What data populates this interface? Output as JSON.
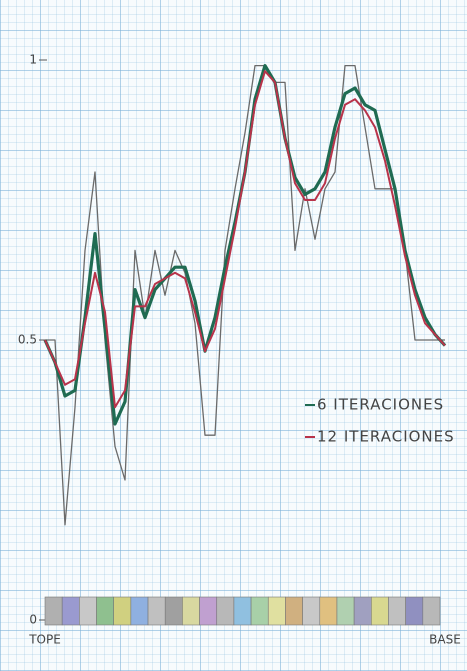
{
  "chart_data": {
    "type": "line",
    "categories": [
      "TOPE",
      null,
      null,
      null,
      null,
      null,
      null,
      null,
      null,
      null,
      null,
      null,
      null,
      null,
      null,
      null,
      null,
      null,
      null,
      null,
      null,
      null,
      null,
      null,
      null,
      null,
      null,
      null,
      null,
      null,
      null,
      null,
      null,
      null,
      null,
      null,
      null,
      null,
      null,
      null,
      "BASE"
    ],
    "ylim": [
      0,
      1
    ],
    "yticks": [
      0,
      0.5,
      1
    ],
    "grid": true,
    "legend": "right",
    "series": [
      {
        "color": "#6a6a6a",
        "values": [
          0.5,
          0.5,
          0.17,
          0.38,
          0.66,
          0.8,
          0.5,
          0.31,
          0.25,
          0.66,
          0.54,
          0.66,
          0.58,
          0.66,
          0.62,
          0.53,
          0.33,
          0.33,
          0.66,
          0.77,
          0.87,
          0.99,
          0.99,
          0.96,
          0.96,
          0.66,
          0.77,
          0.68,
          0.77,
          0.8,
          0.99,
          0.99,
          0.88,
          0.77,
          0.77,
          0.77,
          0.66,
          0.5,
          0.5,
          0.5,
          0.5
        ]
      },
      {
        "name": "6 ITERACIONES",
        "color": "#1f6b52",
        "values": [
          0.5,
          0.46,
          0.4,
          0.41,
          0.54,
          0.69,
          0.52,
          0.35,
          0.39,
          0.59,
          0.54,
          0.59,
          0.61,
          0.63,
          0.63,
          0.57,
          0.48,
          0.54,
          0.63,
          0.71,
          0.8,
          0.93,
          0.99,
          0.96,
          0.86,
          0.79,
          0.76,
          0.77,
          0.8,
          0.88,
          0.94,
          0.95,
          0.92,
          0.91,
          0.84,
          0.77,
          0.66,
          0.59,
          0.54,
          0.51,
          0.49
        ]
      },
      {
        "name": "12 ITERACIONES",
        "color": "#b8334a",
        "values": [
          0.5,
          0.46,
          0.42,
          0.43,
          0.53,
          0.62,
          0.55,
          0.38,
          0.41,
          0.56,
          0.56,
          0.6,
          0.61,
          0.62,
          0.61,
          0.55,
          0.48,
          0.52,
          0.61,
          0.7,
          0.8,
          0.92,
          0.98,
          0.96,
          0.86,
          0.78,
          0.75,
          0.75,
          0.78,
          0.86,
          0.92,
          0.93,
          0.91,
          0.88,
          0.82,
          0.74,
          0.65,
          0.58,
          0.53,
          0.51,
          0.49
        ]
      }
    ]
  }
}
